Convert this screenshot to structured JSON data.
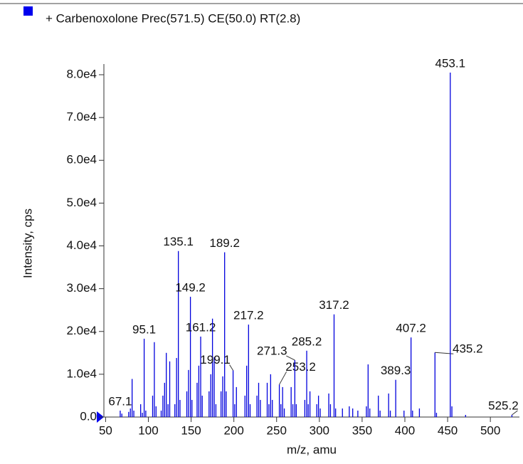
{
  "chart_data": {
    "type": "stick",
    "title": "+ Carbenoxolone Prec(571.5) CE(50.0) RT(2.8)",
    "x_label": "m/z, amu",
    "y_label": "Intensity, cps",
    "color": "#0000dd",
    "xlim": [
      48,
      534
    ],
    "xticks": [
      50,
      100,
      150,
      200,
      250,
      300,
      350,
      400,
      450,
      500
    ],
    "ylim": [
      0,
      81000
    ],
    "yticks": [
      {
        "value": 0,
        "label": "0.0"
      },
      {
        "value": 10000,
        "label": "1.0e4"
      },
      {
        "value": 20000,
        "label": "2.0e4"
      },
      {
        "value": 30000,
        "label": "3.0e4"
      },
      {
        "value": 40000,
        "label": "4.0e4"
      },
      {
        "value": 50000,
        "label": "5.0e4"
      },
      {
        "value": 60000,
        "label": "6.0e4"
      },
      {
        "value": 70000,
        "label": "7.0e4"
      },
      {
        "value": 80000,
        "label": "8.0e4"
      }
    ],
    "series": [
      {
        "name": "+ Carbenoxolone Prec(571.5) CE(50.0) RT(2.8)",
        "color": "#0000dd",
        "x": [
          67.1,
          69,
          77,
          79,
          81,
          83,
          91,
          93,
          95.1,
          97,
          105,
          107,
          109,
          115,
          117,
          119,
          121,
          123,
          125,
          131,
          133,
          135.1,
          137,
          145,
          147,
          149.2,
          151,
          157,
          159,
          161.2,
          163,
          171,
          173,
          175,
          177,
          179,
          185,
          187,
          189.2,
          191,
          199.1,
          201,
          203,
          213,
          215,
          217.2,
          219,
          227,
          229,
          231,
          239,
          241,
          243,
          245,
          253.2,
          255,
          257,
          259,
          267,
          269,
          271.3,
          273,
          283,
          285.2,
          287,
          289,
          297,
          299,
          301,
          311,
          313,
          317.2,
          319,
          327,
          335,
          339,
          345,
          355,
          357,
          359,
          369,
          371,
          381,
          383,
          389.3,
          399,
          407.2,
          409,
          417,
          435.2,
          437,
          453.1,
          455,
          471,
          525.2
        ],
        "values": [
          1500,
          800,
          1200,
          2000,
          8900,
          1500,
          3000,
          1000,
          18300,
          1500,
          5000,
          17500,
          2500,
          1500,
          5000,
          8000,
          15000,
          3000,
          13000,
          3000,
          13800,
          38800,
          4000,
          6000,
          11000,
          28100,
          4000,
          8000,
          12000,
          18800,
          5000,
          6000,
          10000,
          23000,
          14000,
          3000,
          6000,
          9500,
          38500,
          6000,
          10900,
          3000,
          7000,
          5000,
          12000,
          21600,
          3000,
          5000,
          8000,
          4000,
          8000,
          3000,
          10000,
          4000,
          7600,
          3000,
          7000,
          2000,
          7000,
          3000,
          13300,
          3000,
          4000,
          15500,
          3000,
          6000,
          3000,
          5000,
          2000,
          5500,
          3000,
          24000,
          2000,
          2000,
          2500,
          2000,
          1500,
          2500,
          12300,
          2000,
          5000,
          1500,
          5500,
          1500,
          8700,
          1500,
          18600,
          1500,
          2000,
          15100,
          1000,
          80500,
          2500,
          500,
          500
        ],
        "peak_labels": [
          "67.1",
          null,
          null,
          null,
          null,
          null,
          null,
          null,
          "95.1",
          null,
          null,
          null,
          null,
          null,
          null,
          null,
          null,
          null,
          null,
          null,
          null,
          "135.1",
          null,
          null,
          null,
          "149.2",
          null,
          null,
          null,
          "161.2",
          null,
          null,
          null,
          null,
          null,
          null,
          null,
          null,
          "189.2",
          null,
          "199.1",
          null,
          null,
          null,
          null,
          "217.2",
          null,
          null,
          null,
          null,
          null,
          null,
          null,
          null,
          "253.2",
          null,
          null,
          null,
          null,
          null,
          "271.3",
          null,
          null,
          "285.2",
          null,
          null,
          null,
          null,
          null,
          null,
          null,
          "317.2",
          null,
          null,
          null,
          null,
          null,
          null,
          null,
          null,
          null,
          null,
          null,
          null,
          "389.3",
          null,
          "407.2",
          null,
          null,
          "435.2",
          null,
          "453.1",
          null,
          null,
          "525.2"
        ]
      }
    ]
  }
}
